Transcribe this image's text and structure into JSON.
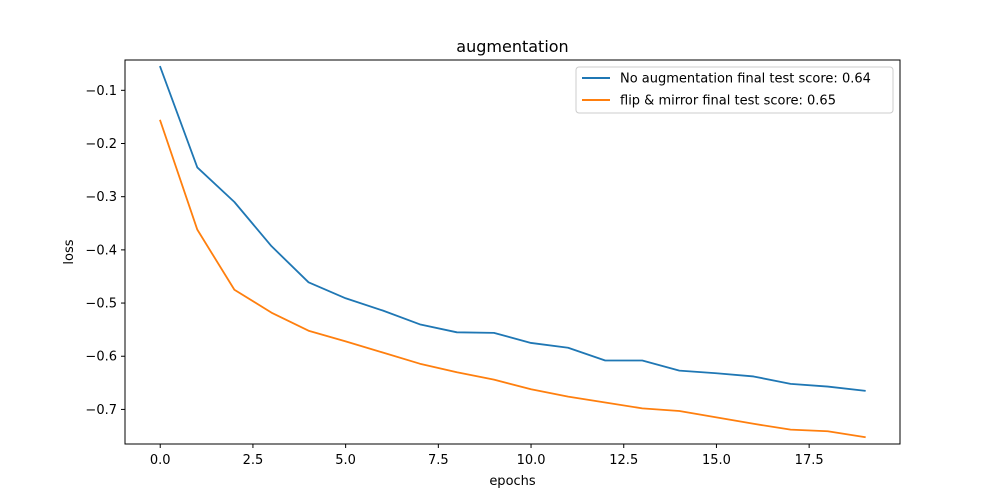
{
  "chart_data": {
    "type": "line",
    "title": "augmentation",
    "xlabel": "epochs",
    "ylabel": "loss",
    "xlim": [
      -0.95,
      19.95
    ],
    "ylim": [
      -0.765,
      -0.043
    ],
    "xticks": [
      0.0,
      2.5,
      5.0,
      7.5,
      10.0,
      12.5,
      15.0,
      17.5
    ],
    "xtick_labels": [
      "0.0",
      "2.5",
      "5.0",
      "7.5",
      "10.0",
      "12.5",
      "15.0",
      "17.5"
    ],
    "yticks": [
      -0.1,
      -0.2,
      -0.3,
      -0.4,
      -0.5,
      -0.6,
      -0.7
    ],
    "ytick_labels": [
      "−0.1",
      "−0.2",
      "−0.3",
      "−0.4",
      "−0.5",
      "−0.6",
      "−0.7"
    ],
    "grid": false,
    "legend_position": "top-right",
    "x": [
      0,
      1,
      2,
      3,
      4,
      5,
      6,
      7,
      8,
      9,
      10,
      11,
      12,
      13,
      14,
      15,
      16,
      17,
      18,
      19
    ],
    "series": [
      {
        "name": "No augmentation final test score: 0.64",
        "color": "#1f77b4",
        "values": [
          -0.056,
          -0.245,
          -0.31,
          -0.393,
          -0.461,
          -0.491,
          -0.514,
          -0.54,
          -0.555,
          -0.556,
          -0.575,
          -0.584,
          -0.608,
          -0.608,
          -0.627,
          -0.632,
          -0.638,
          -0.652,
          -0.657,
          -0.665
        ]
      },
      {
        "name": "flip & mirror final test score: 0.65",
        "color": "#ff7f0e",
        "values": [
          -0.157,
          -0.362,
          -0.475,
          -0.518,
          -0.552,
          -0.572,
          -0.593,
          -0.614,
          -0.63,
          -0.644,
          -0.662,
          -0.676,
          -0.687,
          -0.698,
          -0.703,
          -0.715,
          -0.727,
          -0.738,
          -0.741,
          -0.752
        ]
      }
    ]
  }
}
